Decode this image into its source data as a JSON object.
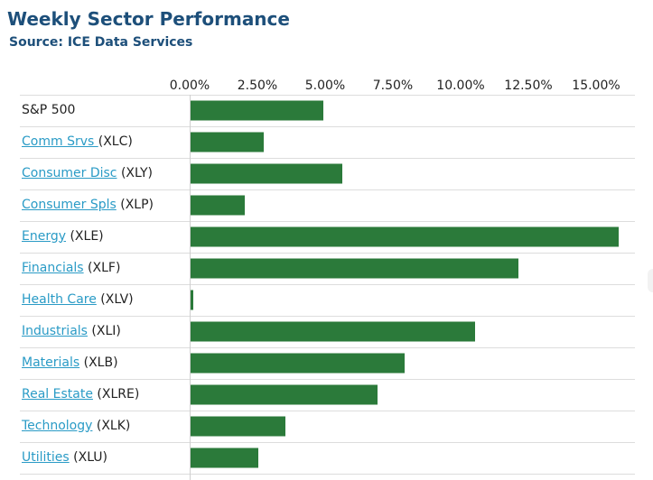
{
  "header": {
    "title": "Weekly Sector Performance",
    "subtitle": "Source: ICE Data Services"
  },
  "colors": {
    "bar": "#2b7a3a",
    "link": "#2a9bc6",
    "title": "#1d4f7a"
  },
  "chart_data": {
    "type": "bar",
    "orientation": "horizontal",
    "title": "Weekly Sector Performance",
    "subtitle": "Source: ICE Data Services",
    "xlim": [
      0,
      15.8
    ],
    "ticks": [
      0,
      2.5,
      5,
      7.5,
      10,
      12.5,
      15
    ],
    "tick_labels": [
      "0.00%",
      "2.50%",
      "5.00%",
      "7.50%",
      "10.00%",
      "12.50%",
      "15.00%"
    ],
    "grid": false,
    "categories": [
      {
        "name": "S&P 500",
        "ticker": "",
        "link": false
      },
      {
        "name": "Comm Srvs ",
        "ticker": "(XLC)",
        "link": true
      },
      {
        "name": "Consumer Disc",
        "ticker": "(XLY)",
        "link": true
      },
      {
        "name": "Consumer Spls",
        "ticker": "(XLP)",
        "link": true
      },
      {
        "name": "Energy",
        "ticker": "(XLE)",
        "link": true
      },
      {
        "name": "Financials",
        "ticker": "(XLF)",
        "link": true
      },
      {
        "name": "Health Care",
        "ticker": "(XLV)",
        "link": true
      },
      {
        "name": "Industrials",
        "ticker": "(XLI)",
        "link": true
      },
      {
        "name": "Materials",
        "ticker": "(XLB)",
        "link": true
      },
      {
        "name": "Real Estate",
        "ticker": "(XLRE)",
        "link": true
      },
      {
        "name": "Technology",
        "ticker": "(XLK)",
        "link": true
      },
      {
        "name": "Utilities",
        "ticker": "(XLU)",
        "link": true
      }
    ],
    "values": [
      4.9,
      2.7,
      5.6,
      2.0,
      15.8,
      12.1,
      0.1,
      10.5,
      7.9,
      6.9,
      3.5,
      2.5
    ]
  }
}
